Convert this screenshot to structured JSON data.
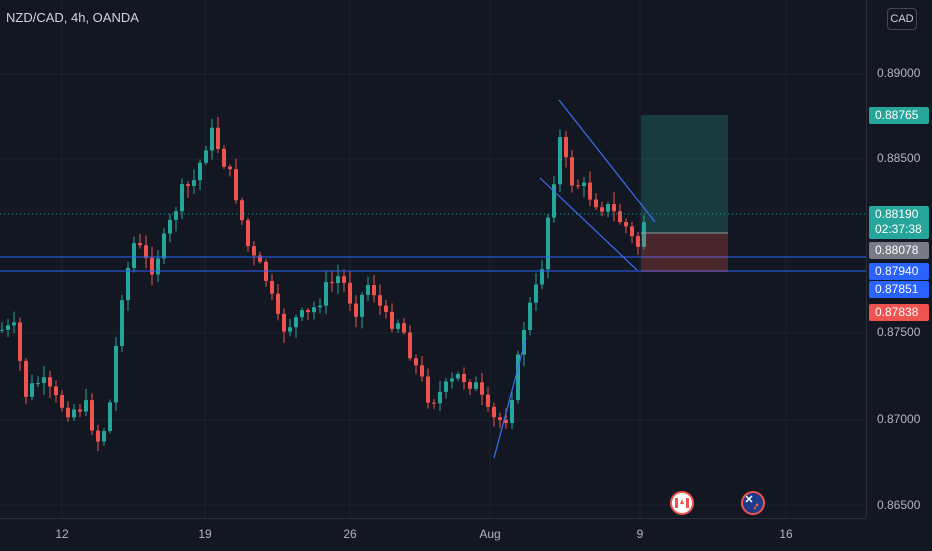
{
  "header": {
    "symbol": "NZD/CAD, 4h, OANDA",
    "currency": "CAD"
  },
  "price_axis": {
    "ticks": [
      "0.89000",
      "0.88500",
      "0.87500",
      "0.87000",
      "0.86500"
    ]
  },
  "time_axis": {
    "ticks": [
      "12",
      "19",
      "26",
      "Aug",
      "9",
      "16"
    ]
  },
  "labels": {
    "target": "0.88765",
    "last_price": "0.88190",
    "countdown": "02:37:38",
    "level_a": "0.88078",
    "level_b": "0.87940",
    "level_c": "0.87851",
    "stop": "0.87838"
  },
  "colors": {
    "up": "#26a69a",
    "down": "#ef5350",
    "line": "#2962ff",
    "trend": "#3d6ef5",
    "target_zone": "#26a69a",
    "stop_zone": "#ef5350"
  },
  "events": [
    "canada-flag-icon",
    "new-zealand-flag-icon"
  ]
}
